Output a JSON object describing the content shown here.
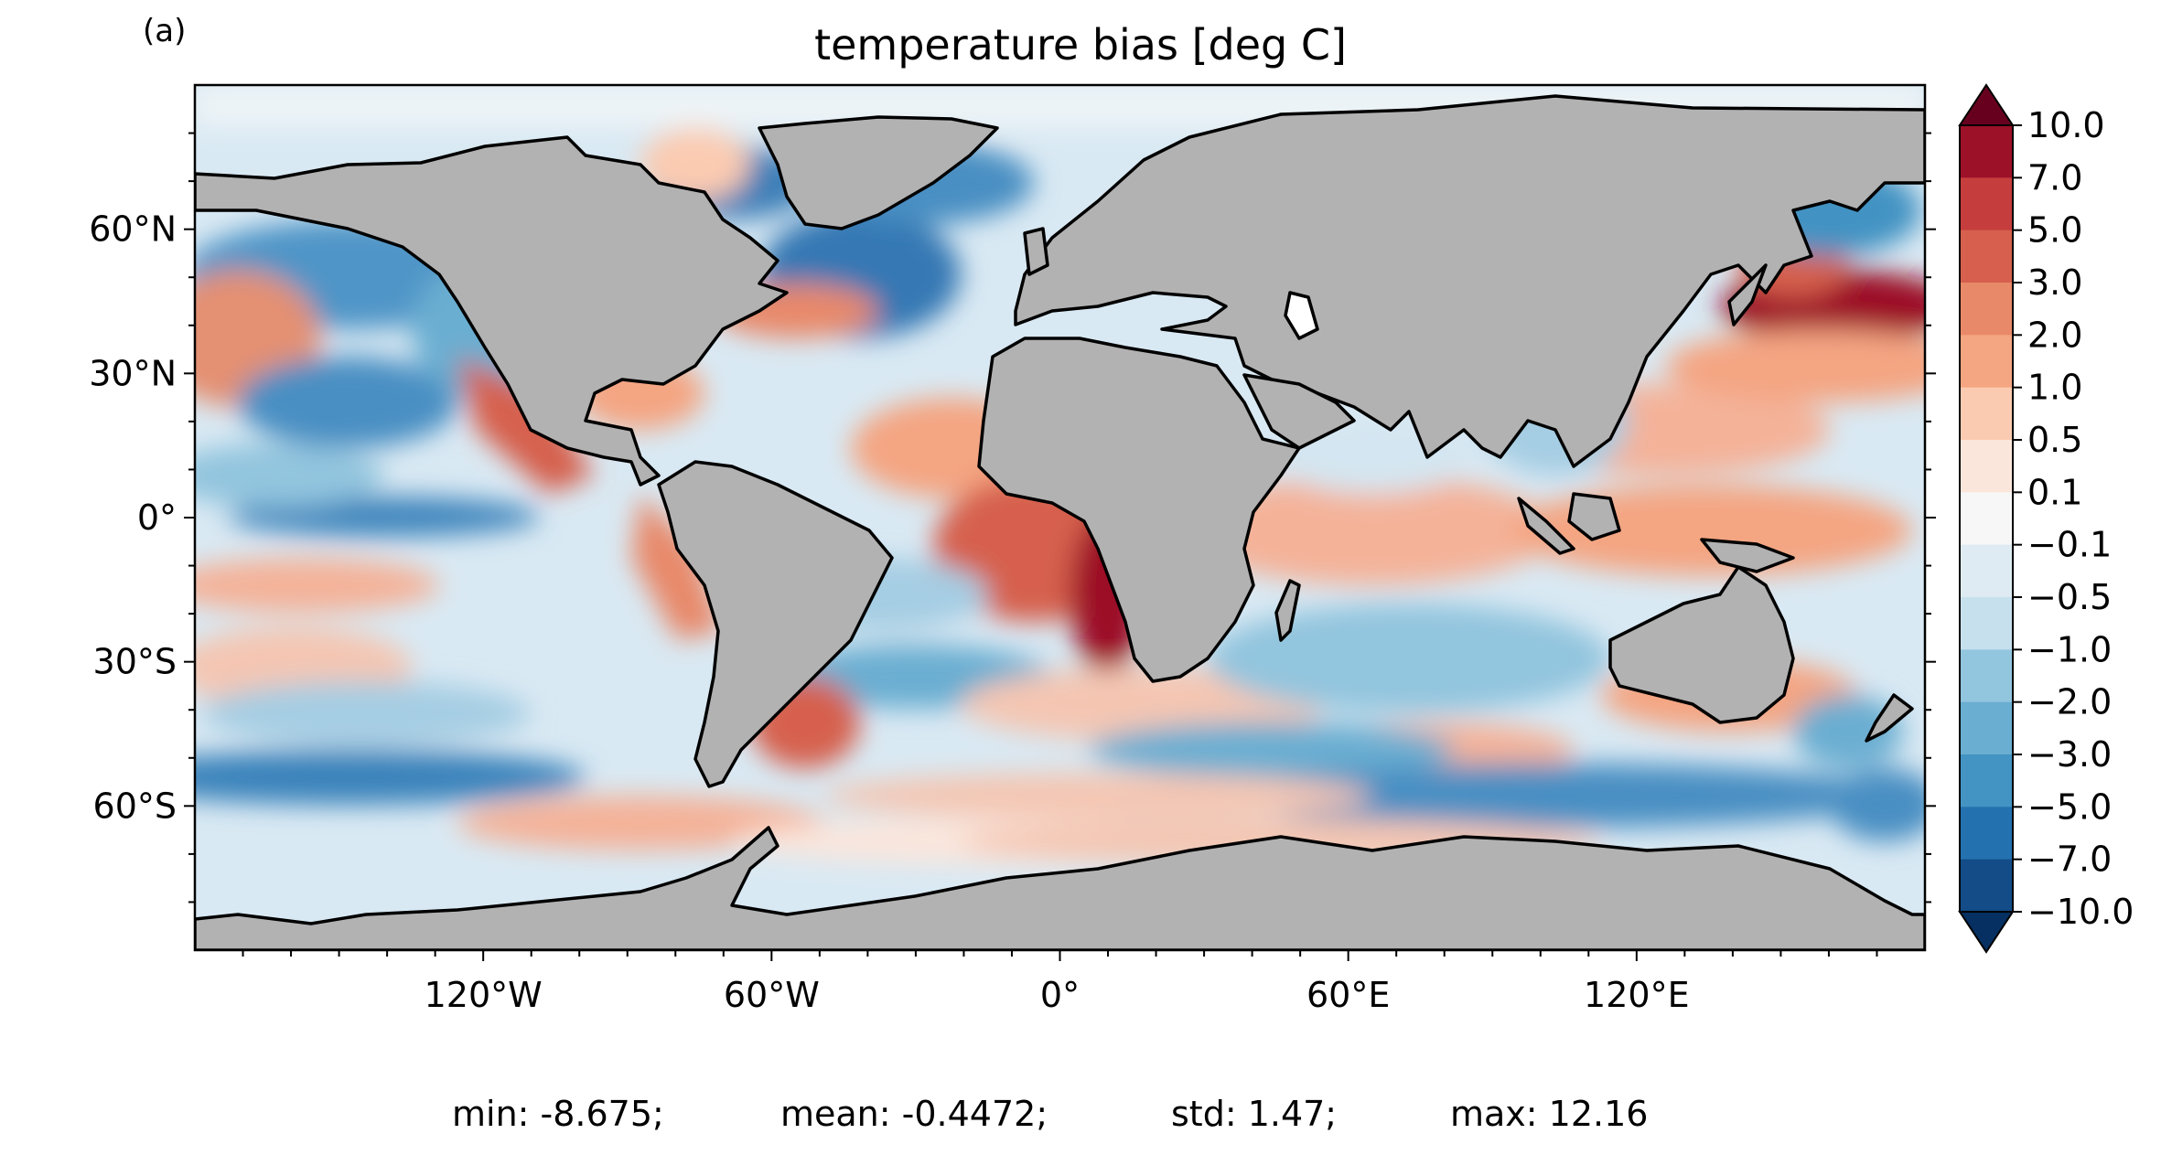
{
  "panel_label": "(a)",
  "title": "temperature bias [deg C]",
  "map": {
    "projection": "PlateCarree",
    "land_color": "#b2b2b2",
    "coastline_color": "#000000",
    "lon_range": [
      -180,
      180
    ],
    "lat_range": [
      -90,
      90
    ],
    "x_ticks": [
      "120°W",
      "60°W",
      "0°",
      "60°E",
      "120°E"
    ],
    "y_ticks": [
      "60°N",
      "30°N",
      "0°",
      "30°S",
      "60°S"
    ]
  },
  "colorbar": {
    "colormap": "RdBu_r",
    "extend": "both",
    "levels": [
      "10.0",
      "7.0",
      "5.0",
      "3.0",
      "2.0",
      "1.0",
      "0.5",
      "0.1",
      "−0.1",
      "−0.5",
      "−1.0",
      "−2.0",
      "−3.0",
      "−5.0",
      "−7.0",
      "−10.0"
    ],
    "colors": [
      "#67001f",
      "#9c1127",
      "#c53e3d",
      "#d6604d",
      "#e8896a",
      "#f4a582",
      "#fbcbb1",
      "#fbe6dc",
      "#f7f7f7",
      "#deebf2",
      "#c7e0ed",
      "#92c5de",
      "#6aaed1",
      "#4393c3",
      "#2471b0",
      "#134c87",
      "#053061"
    ]
  },
  "stats": {
    "min": "min: -8.675;",
    "mean": "mean: -0.4472;",
    "std": "std: 1.47;",
    "max": "max: 12.16"
  }
}
